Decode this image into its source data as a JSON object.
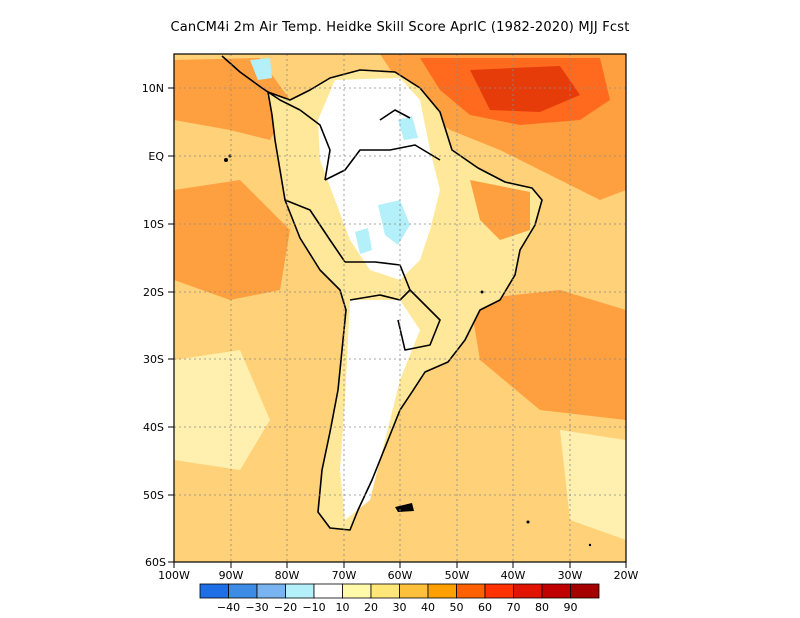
{
  "title": "CanCM4i  2m Air Temp. Heidke Skill Score AprIC (1982-2020) MJJ Fcst",
  "lat_labels": [
    "10N",
    "EQ",
    "10S",
    "20S",
    "30S",
    "40S",
    "50S",
    "60S"
  ],
  "lon_labels": [
    "100W",
    "90W",
    "80W",
    "70W",
    "60W",
    "50W",
    "40W",
    "30W",
    "20W"
  ],
  "colorbar": {
    "labels": [
      "-40",
      "-30",
      "-20",
      "-10",
      "10",
      "20",
      "30",
      "40",
      "50",
      "60",
      "70",
      "80",
      "90"
    ],
    "colors": [
      "#1e6ee6",
      "#3c8ce6",
      "#78b4f0",
      "#b4f0fa",
      "#ffffff",
      "#fffaaa",
      "#ffe678",
      "#ffc03c",
      "#ffa000",
      "#ff6000",
      "#ff3200",
      "#e11400",
      "#c00000",
      "#a50000"
    ]
  },
  "field_colors": {
    "ocean": "#ffd178",
    "land": "#ffe89a",
    "hot": "#ffa040",
    "hotter": "#ff6a1e",
    "cool": "#ffffff",
    "negative": "#b4f0fa"
  }
}
